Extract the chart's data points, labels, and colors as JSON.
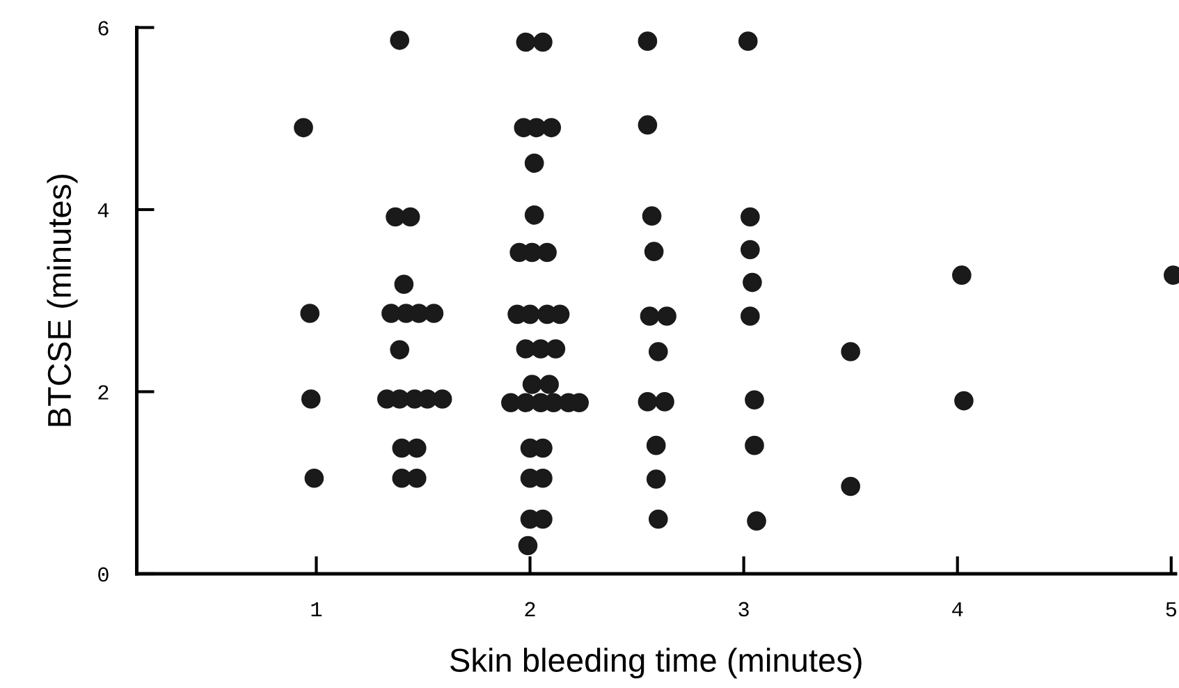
{
  "chart_data": {
    "type": "scatter",
    "xlabel": "Skin bleeding time (minutes)",
    "ylabel": "BTCSE (minutes)",
    "xlim": [
      0.16,
      5.02
    ],
    "ylim": [
      0,
      6
    ],
    "xticks": [
      1,
      2,
      3,
      4,
      5
    ],
    "yticks": [
      0,
      2,
      4,
      6
    ],
    "grid": false,
    "legend": false,
    "marker": "circle",
    "series": [
      {
        "color": "#1a1a1a",
        "x": [
          0.94,
          0.97,
          0.975,
          0.99,
          1.39,
          1.37,
          1.44,
          1.41,
          1.35,
          1.42,
          1.48,
          1.55,
          1.39,
          1.33,
          1.39,
          1.46,
          1.52,
          1.59,
          1.4,
          1.47,
          1.4,
          1.47,
          1.98,
          2.06,
          1.97,
          2.03,
          2.1,
          2.02,
          2.02,
          1.95,
          2.01,
          2.08,
          1.94,
          2.0,
          2.08,
          2.14,
          1.98,
          2.05,
          2.12,
          2.01,
          2.09,
          1.91,
          1.98,
          2.05,
          2.11,
          2.18,
          2.23,
          2.0,
          2.06,
          2.0,
          2.06,
          2.0,
          2.06,
          1.99,
          2.55,
          2.55,
          2.57,
          2.58,
          2.56,
          2.64,
          2.6,
          2.55,
          2.63,
          2.59,
          2.59,
          2.6,
          3.02,
          3.03,
          3.03,
          3.04,
          3.03,
          3.05,
          3.05,
          3.06,
          3.5,
          3.5,
          4.02,
          4.03,
          5.01
        ],
        "values": [
          4.9,
          2.86,
          1.92,
          1.05,
          5.86,
          3.92,
          3.92,
          3.18,
          2.86,
          2.86,
          2.86,
          2.86,
          2.46,
          1.92,
          1.92,
          1.92,
          1.92,
          1.92,
          1.38,
          1.38,
          1.05,
          1.05,
          5.84,
          5.84,
          4.9,
          4.9,
          4.9,
          4.51,
          3.94,
          3.53,
          3.53,
          3.53,
          2.85,
          2.85,
          2.85,
          2.85,
          2.47,
          2.47,
          2.47,
          2.08,
          2.08,
          1.88,
          1.88,
          1.88,
          1.88,
          1.88,
          1.88,
          1.38,
          1.38,
          1.05,
          1.05,
          0.6,
          0.6,
          0.31,
          5.85,
          4.93,
          3.93,
          3.54,
          2.83,
          2.83,
          2.44,
          1.89,
          1.89,
          1.41,
          1.04,
          0.6,
          5.85,
          3.92,
          3.56,
          3.2,
          2.83,
          1.91,
          1.41,
          0.58,
          2.44,
          0.96,
          3.28,
          1.9,
          3.28
        ]
      }
    ]
  }
}
